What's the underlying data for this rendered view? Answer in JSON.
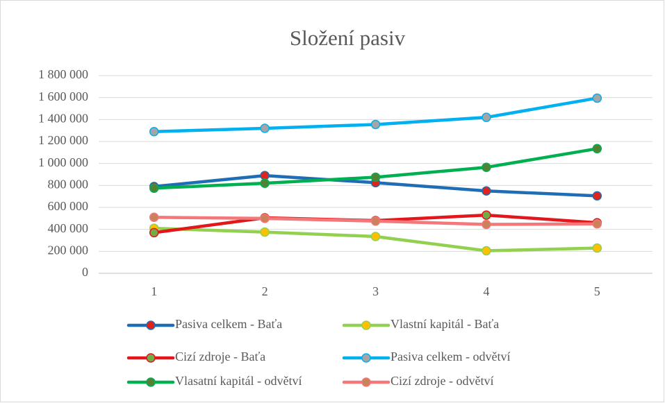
{
  "chart_data": {
    "type": "line",
    "title": "Složení pasiv",
    "categories": [
      "1",
      "2",
      "3",
      "4",
      "5"
    ],
    "series": [
      {
        "name": "Pasiva celkem - Baťa",
        "color": "#1f6db4",
        "marker_color": "#e0241b",
        "values": [
          790000,
          890000,
          825000,
          750000,
          705000
        ]
      },
      {
        "name": "Vlastní kapitál - Baťa",
        "color": "#92d050",
        "marker_color": "#ffc000",
        "values": [
          410000,
          375000,
          335000,
          205000,
          230000
        ]
      },
      {
        "name": "Cizí zdroje - Baťa",
        "color": "#e3161b",
        "marker_color": "#70ad47",
        "values": [
          370000,
          505000,
          480000,
          530000,
          460000
        ]
      },
      {
        "name": "Pasiva celkem - odvětví",
        "color": "#00b0f0",
        "marker_color": "#a5a5a5",
        "values": [
          1290000,
          1320000,
          1355000,
          1420000,
          1595000
        ]
      },
      {
        "name": "Vlasatní kapitál - odvětví",
        "color": "#00b050",
        "marker_color": "#548235",
        "values": [
          775000,
          820000,
          875000,
          965000,
          1135000
        ]
      },
      {
        "name": "Cizí zdroje - odvětví",
        "color": "#f4777a",
        "marker_color": "#c9825a",
        "values": [
          510000,
          500000,
          475000,
          445000,
          450000
        ]
      }
    ],
    "ylim": [
      0,
      1800000
    ],
    "yticks": [
      0,
      {
        "value": 200000,
        "label": "200 000"
      },
      {
        "value": 400000,
        "label": "400 000"
      },
      {
        "value": 600000,
        "label": "600 000"
      },
      {
        "value": 800000,
        "label": "800 000"
      },
      {
        "value": 1000000,
        "label": "1 000 000"
      },
      {
        "value": 1200000,
        "label": "1 200 000"
      },
      {
        "value": 1400000,
        "label": "1 400 000"
      },
      {
        "value": 1600000,
        "label": "1 600 000"
      },
      {
        "value": 1800000,
        "label": "1 800 000"
      }
    ],
    "grid": true,
    "legend": "bottom"
  }
}
